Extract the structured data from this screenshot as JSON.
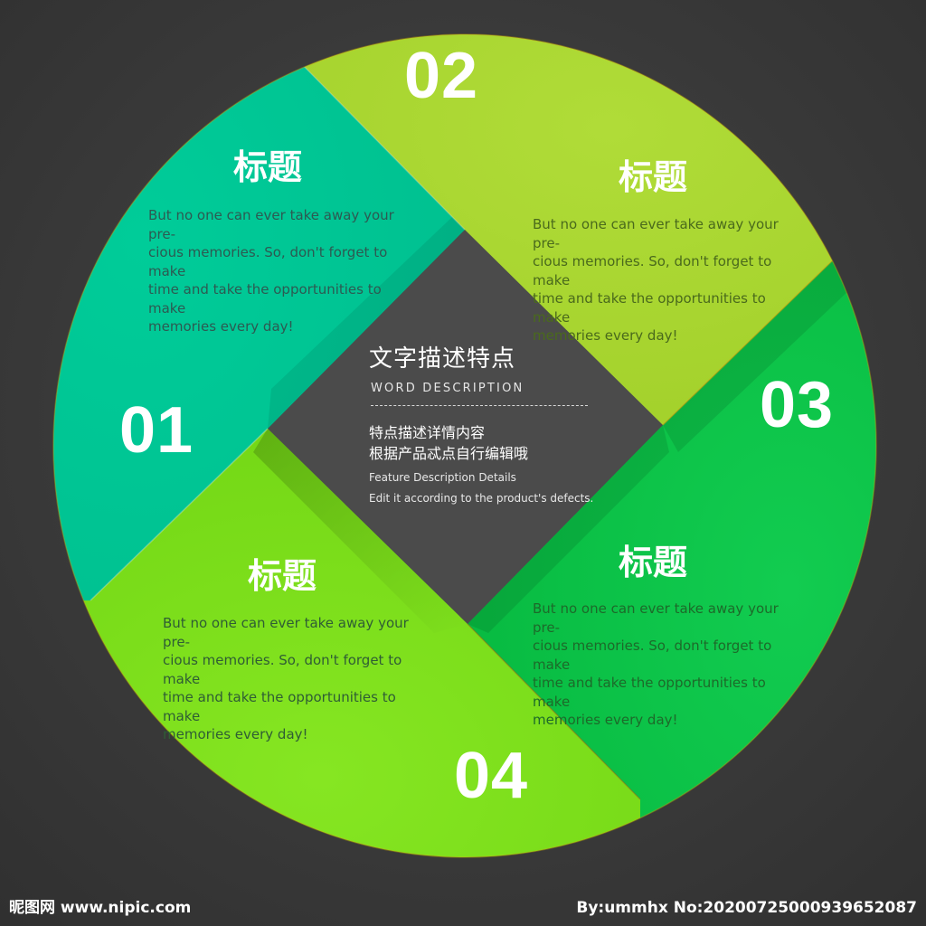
{
  "segments": [
    {
      "number": "01",
      "title": "标题",
      "body_lines": [
        "But no one can ever take away your pre-",
        "cious memories. So, don't forget to make",
        "time and take the opportunities to make",
        "memories every day!"
      ],
      "color": "#00c896"
    },
    {
      "number": "02",
      "title": "标题",
      "body_lines": [
        "But no one can ever take away your pre-",
        "cious memories. So, don't forget to make",
        "time and take the opportunities to make",
        "memories every day!"
      ],
      "color": "#a8d630"
    },
    {
      "number": "03",
      "title": "标题",
      "body_lines": [
        "But no one can ever take away your pre-",
        "cious memories. So, don't forget to make",
        "time and take the opportunities to make",
        "memories every day!"
      ],
      "color": "#0dc44a"
    },
    {
      "number": "04",
      "title": "标题",
      "body_lines": [
        "But no one can ever take away your pre-",
        "cious memories. So, don't forget to make",
        "time and take the opportunities to make",
        "memories every day!"
      ],
      "color": "#7ee01a"
    }
  ],
  "center": {
    "title": "文字描述特点",
    "subtitle": "WORD DESCRIPTION",
    "cn_lines": [
      "特点描述详情内容",
      "根据产品忒点自行编辑哦"
    ],
    "en_lines": [
      "Feature Description Details",
      "Edit it according to the product's defects."
    ]
  },
  "colors": {
    "background": "#3a3a3a",
    "center_panel": "#4b4b4b"
  },
  "watermark": {
    "left": "昵图网 www.nipic.com",
    "right": "By:ummhx No:20200725000939652087"
  }
}
